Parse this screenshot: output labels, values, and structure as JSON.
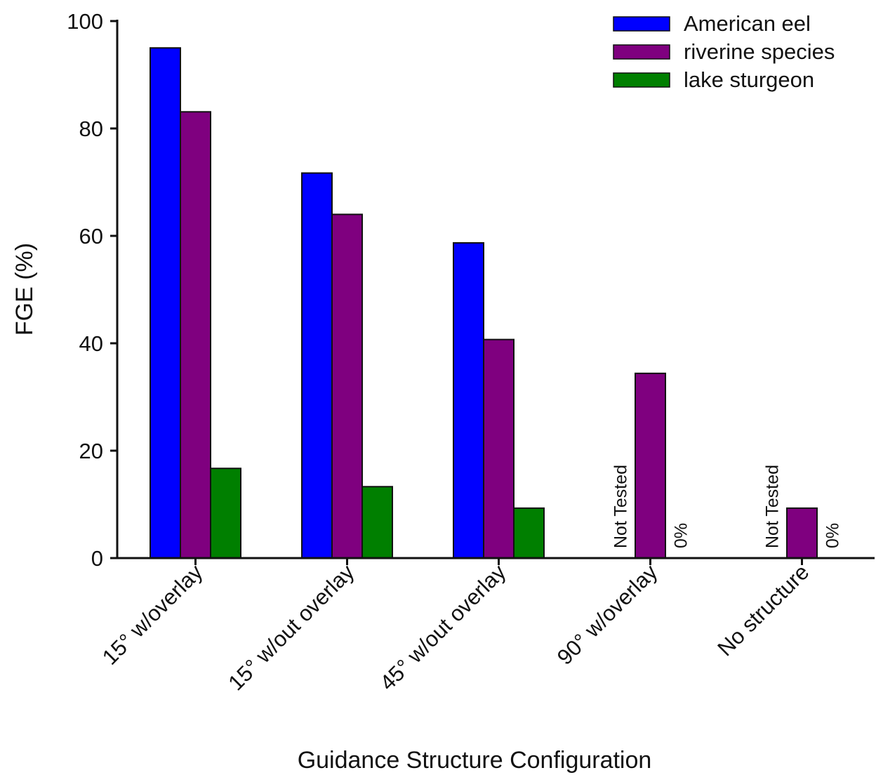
{
  "chart_data": {
    "type": "bar",
    "xlabel": "Guidance Structure Configuration",
    "ylabel": "FGE (%)",
    "ylim": [
      0,
      100
    ],
    "yticks": [
      "0",
      "20",
      "40",
      "60",
      "80",
      "100"
    ],
    "categories": [
      "15° w/overlay",
      "15° w/out overlay",
      "45° w/out overlay",
      "90° w/overlay",
      "No structure"
    ],
    "series": [
      {
        "name": "American eel",
        "color": "#0000ff",
        "values": [
          95,
          71.7,
          58.7,
          null,
          null
        ]
      },
      {
        "name": "riverine species",
        "color": "#7f007f",
        "values": [
          83.1,
          64,
          40.7,
          34.4,
          9.3
        ]
      },
      {
        "name": "lake sturgeon",
        "color": "#007f00",
        "values": [
          16.7,
          13.3,
          9.3,
          0,
          0
        ]
      }
    ],
    "annotations": [
      {
        "category": "90° w/overlay",
        "series": "American eel",
        "text": "Not Tested"
      },
      {
        "category": "90° w/overlay",
        "series": "lake sturgeon",
        "text": "0%"
      },
      {
        "category": "No structure",
        "series": "American eel",
        "text": "Not Tested"
      },
      {
        "category": "No structure",
        "series": "lake sturgeon",
        "text": "0%"
      }
    ],
    "legend_position": "top-right",
    "grid": false
  }
}
